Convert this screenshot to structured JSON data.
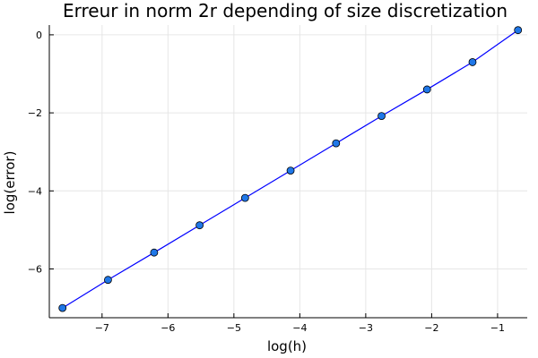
{
  "chart_data": {
    "type": "line",
    "title": "Erreur in norm 2r depending of size discretization",
    "xlabel": "log(h)",
    "ylabel": "log(error)",
    "xlim": [
      -7.8,
      -0.55
    ],
    "ylim": [
      -7.25,
      0.25
    ],
    "xticks": [
      -7,
      -6,
      -5,
      -4,
      -3,
      -2,
      -1
    ],
    "yticks": [
      0,
      -2,
      -4,
      -6
    ],
    "xtick_labels": [
      "−7",
      "−6",
      "−5",
      "−4",
      "−3",
      "−2",
      "−1"
    ],
    "ytick_labels": [
      "0",
      "−2",
      "−4",
      "−6"
    ],
    "grid": true,
    "legend": "none",
    "series": [
      {
        "color": "#0000ff",
        "marker_color": "#1f77e8",
        "x": [
          -7.6,
          -6.91,
          -6.21,
          -5.52,
          -4.83,
          -4.14,
          -3.45,
          -2.76,
          -2.07,
          -1.38,
          -0.69
        ],
        "y": [
          -7.0,
          -6.28,
          -5.58,
          -4.88,
          -4.18,
          -3.48,
          -2.78,
          -2.08,
          -1.4,
          -0.7,
          0.12
        ]
      }
    ]
  }
}
